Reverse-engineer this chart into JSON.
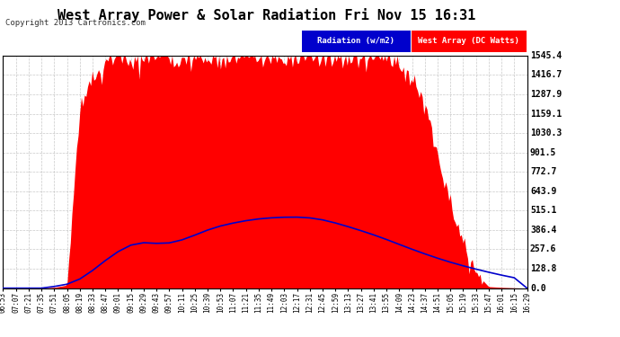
{
  "title": "West Array Power & Solar Radiation Fri Nov 15 16:31",
  "copyright": "Copyright 2013 Cartronics.com",
  "yticks": [
    0.0,
    128.8,
    257.6,
    386.4,
    515.1,
    643.9,
    772.7,
    901.5,
    1030.3,
    1159.1,
    1287.9,
    1416.7,
    1545.4
  ],
  "ymax": 1545.4,
  "ymin": 0.0,
  "xtick_labels": [
    "06:53",
    "07:07",
    "07:21",
    "07:35",
    "07:51",
    "08:05",
    "08:19",
    "08:33",
    "08:47",
    "09:01",
    "09:15",
    "09:29",
    "09:43",
    "09:57",
    "10:11",
    "10:25",
    "10:39",
    "10:53",
    "11:07",
    "11:21",
    "11:35",
    "11:49",
    "12:03",
    "12:17",
    "12:31",
    "12:45",
    "12:59",
    "13:13",
    "13:27",
    "13:41",
    "13:55",
    "14:09",
    "14:23",
    "14:37",
    "14:51",
    "15:05",
    "15:19",
    "15:33",
    "15:47",
    "16:01",
    "16:15",
    "16:29"
  ],
  "background_color": "#ffffff",
  "plot_bg_color": "#ffffff",
  "grid_color": "#bbbbbb",
  "title_fontsize": 11,
  "legend_radiation_color": "#0000cc",
  "legend_west_color": "#ff0000",
  "radiation_line_color": "#0000cc",
  "west_fill_color": "#ff0000",
  "rad_peak": 480,
  "west_peak": 1545.4
}
